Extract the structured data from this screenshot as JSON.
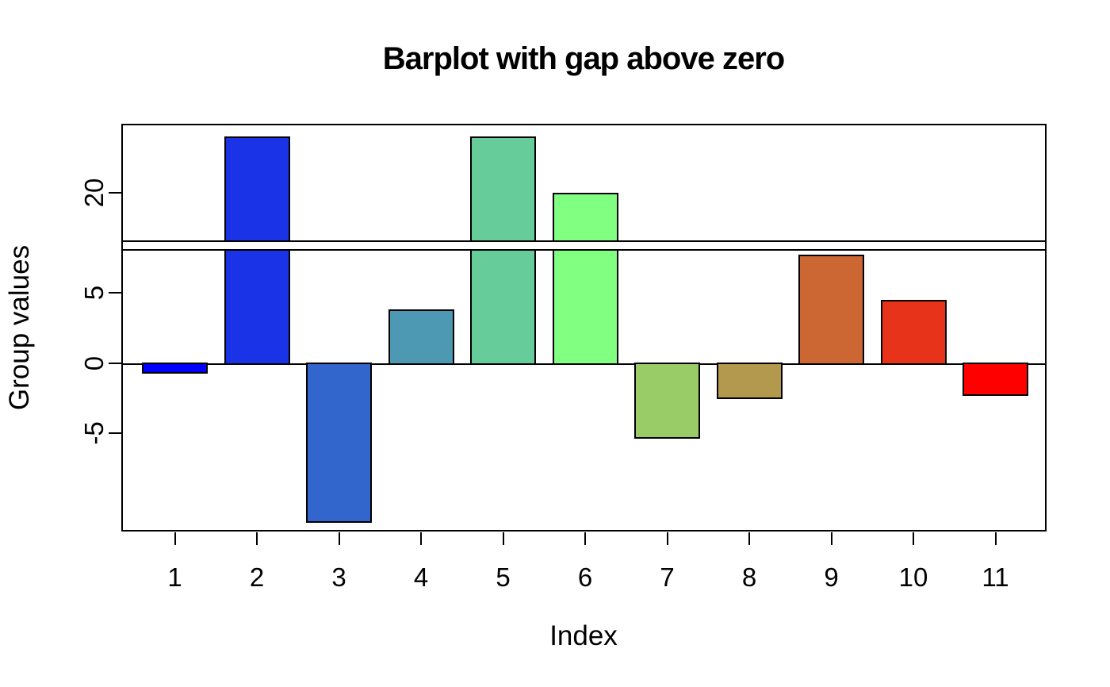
{
  "page": {
    "background": "#FFFFFF"
  },
  "chart_data": {
    "type": "bar",
    "title": "Barplot with gap above zero",
    "xlabel": "Index",
    "ylabel": "Group values",
    "categories": [
      "1",
      "2",
      "3",
      "4",
      "5",
      "6",
      "7",
      "8",
      "9",
      "10",
      "11"
    ],
    "values": [
      -0.7,
      24,
      -11.3,
      3.8,
      24,
      20,
      -5.3,
      -2.5,
      7.7,
      4.5,
      -2.3
    ],
    "bar_colors": [
      "#0000FF",
      "#1A33E6",
      "#3366CC",
      "#4D99B3",
      "#66CC99",
      "#80FF80",
      "#99CC66",
      "#B3994D",
      "#CC6633",
      "#E6331A",
      "#FF0000"
    ],
    "bar_border_color": "#000000",
    "axis_color": "#000000",
    "text_color": "#000000",
    "grid": false,
    "legend": false,
    "broken_y_axis": {
      "gap_from": 8.1,
      "gap_to": 16.5,
      "upper_panel": {
        "ymin": 16.5,
        "ymax": 24.88,
        "yticks": [
          {
            "value": 20,
            "label": "20"
          }
        ]
      },
      "lower_panel": {
        "ymin": -11.95,
        "ymax": 8.1,
        "yticks": [
          {
            "value": 5,
            "label": "5"
          },
          {
            "value": 0,
            "label": "0"
          },
          {
            "value": -5,
            "label": "-5"
          }
        ]
      }
    }
  }
}
